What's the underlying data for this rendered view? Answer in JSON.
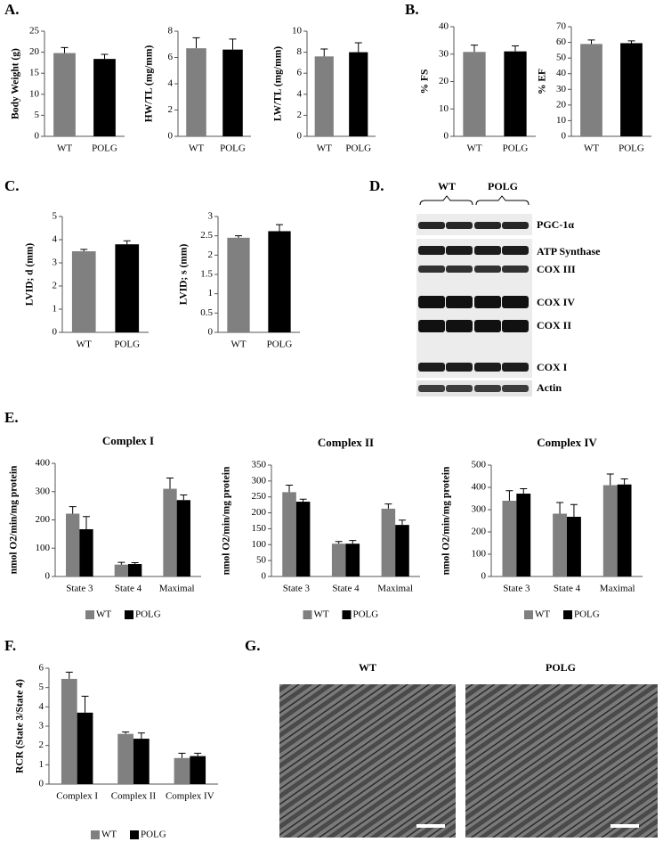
{
  "panel_labels": [
    "A.",
    "B.",
    "C.",
    "D.",
    "E.",
    "F.",
    "G."
  ],
  "blot": {
    "groups": [
      "WT",
      "POLG"
    ],
    "bands": [
      "PGC-1α",
      "ATP Synthase",
      "COX III",
      "COX IV",
      "COX II",
      "COX I",
      "Actin"
    ]
  },
  "micrographs": {
    "labels": [
      "WT",
      "POLG"
    ]
  },
  "chart_data": [
    {
      "type": "bar",
      "ylabel": "Body Weight (g)",
      "categories": [
        "WT",
        "POLG"
      ],
      "values": [
        19.8,
        18.4
      ],
      "errors": [
        1.3,
        1.1
      ],
      "colors": [
        "#808080",
        "#000000"
      ],
      "ylim": [
        0,
        25
      ],
      "yticks": [
        0,
        5,
        10,
        15,
        20,
        25
      ]
    },
    {
      "type": "bar",
      "ylabel": "HW/TL (mg/mm)",
      "categories": [
        "WT",
        "POLG"
      ],
      "values": [
        6.7,
        6.6
      ],
      "errors": [
        0.8,
        0.8
      ],
      "colors": [
        "#808080",
        "#000000"
      ],
      "ylim": [
        0,
        8
      ],
      "yticks": [
        0,
        2,
        4,
        6,
        8
      ]
    },
    {
      "type": "bar",
      "ylabel": "LW/TL (mg/mm)",
      "categories": [
        "WT",
        "POLG"
      ],
      "values": [
        7.6,
        8.0
      ],
      "errors": [
        0.7,
        0.9
      ],
      "colors": [
        "#808080",
        "#000000"
      ],
      "ylim": [
        0,
        10
      ],
      "yticks": [
        0,
        2,
        4,
        6,
        8,
        10
      ]
    },
    {
      "type": "bar",
      "ylabel": "% FS",
      "categories": [
        "WT",
        "POLG"
      ],
      "values": [
        30.8,
        31.0
      ],
      "errors": [
        2.5,
        2.0
      ],
      "colors": [
        "#808080",
        "#000000"
      ],
      "ylim": [
        0,
        40
      ],
      "yticks": [
        0,
        10,
        20,
        30,
        40
      ]
    },
    {
      "type": "bar",
      "ylabel": "% EF",
      "categories": [
        "WT",
        "POLG"
      ],
      "values": [
        59,
        59.5
      ],
      "errors": [
        2.5,
        1.5
      ],
      "colors": [
        "#808080",
        "#000000"
      ],
      "ylim": [
        0,
        70
      ],
      "yticks": [
        0,
        10,
        20,
        30,
        40,
        50,
        60,
        70
      ]
    },
    {
      "type": "bar",
      "ylabel": "LVID; d (mm)",
      "categories": [
        "WT",
        "POLG"
      ],
      "values": [
        3.5,
        3.8
      ],
      "errors": [
        0.08,
        0.15
      ],
      "colors": [
        "#808080",
        "#000000"
      ],
      "ylim": [
        0,
        5
      ],
      "yticks": [
        0,
        1,
        2,
        3,
        4,
        5
      ]
    },
    {
      "type": "bar",
      "ylabel": "LVID; s (mm)",
      "categories": [
        "WT",
        "POLG"
      ],
      "values": [
        2.45,
        2.62
      ],
      "errors": [
        0.05,
        0.17
      ],
      "colors": [
        "#808080",
        "#000000"
      ],
      "ylim": [
        0,
        3
      ],
      "yticks": [
        0,
        0.5,
        1,
        1.5,
        2,
        2.5,
        3
      ]
    },
    {
      "type": "bar",
      "title": "Complex I",
      "ylabel": "nmol O2/min/mg protein",
      "categories": [
        "State 3",
        "State 4",
        "Maximal"
      ],
      "series": [
        {
          "name": "WT",
          "color": "#808080",
          "values": [
            222,
            42,
            310
          ],
          "errors": [
            25,
            8,
            38
          ]
        },
        {
          "name": "POLG",
          "color": "#000000",
          "values": [
            167,
            44,
            270
          ],
          "errors": [
            45,
            5,
            18
          ]
        }
      ],
      "ylim": [
        0,
        400
      ],
      "yticks": [
        0,
        100,
        200,
        300,
        400
      ],
      "legend": "bottom"
    },
    {
      "type": "bar",
      "title": "Complex II",
      "ylabel": "nmol O2/min/mg protein",
      "categories": [
        "State 3",
        "State 4",
        "Maximal"
      ],
      "series": [
        {
          "name": "WT",
          "color": "#808080",
          "values": [
            265,
            103,
            213
          ],
          "errors": [
            22,
            7,
            15
          ]
        },
        {
          "name": "POLG",
          "color": "#000000",
          "values": [
            235,
            103,
            162
          ],
          "errors": [
            8,
            10,
            15
          ]
        }
      ],
      "ylim": [
        0,
        350
      ],
      "yticks": [
        0,
        50,
        100,
        150,
        200,
        250,
        300,
        350
      ],
      "legend": "bottom"
    },
    {
      "type": "bar",
      "title": "Complex IV",
      "ylabel": "nmol O2/min/mg protein",
      "categories": [
        "State 3",
        "State 4",
        "Maximal"
      ],
      "series": [
        {
          "name": "WT",
          "color": "#808080",
          "values": [
            340,
            282,
            410
          ],
          "errors": [
            45,
            50,
            50
          ]
        },
        {
          "name": "POLG",
          "color": "#000000",
          "values": [
            372,
            268,
            413
          ],
          "errors": [
            22,
            55,
            25
          ]
        }
      ],
      "ylim": [
        0,
        500
      ],
      "yticks": [
        0,
        100,
        200,
        300,
        400,
        500
      ],
      "legend": "bottom"
    },
    {
      "type": "bar",
      "ylabel": "RCR (State 3/State 4)",
      "categories": [
        "Complex I",
        "Complex II",
        "Complex IV"
      ],
      "series": [
        {
          "name": "WT",
          "color": "#808080",
          "values": [
            5.45,
            2.6,
            1.35
          ],
          "errors": [
            0.35,
            0.1,
            0.25
          ]
        },
        {
          "name": "POLG",
          "color": "#000000",
          "values": [
            3.7,
            2.35,
            1.45
          ],
          "errors": [
            0.85,
            0.3,
            0.15
          ]
        }
      ],
      "ylim": [
        0,
        6
      ],
      "yticks": [
        0,
        1,
        2,
        3,
        4,
        5,
        6
      ],
      "legend": "bottom"
    }
  ]
}
